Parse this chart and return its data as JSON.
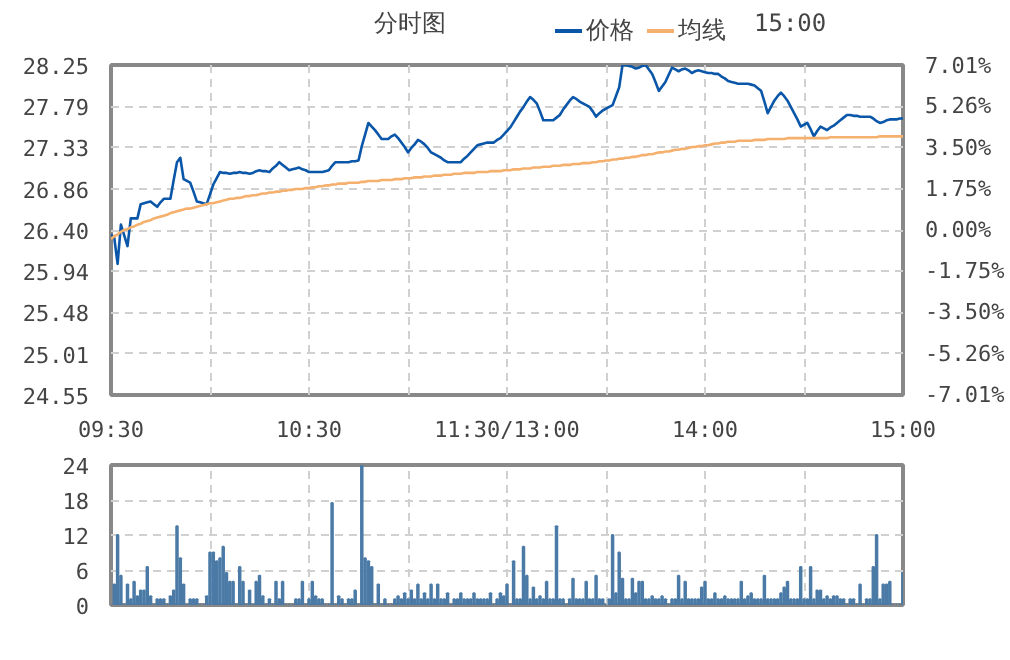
{
  "chart_data": [
    {
      "type": "line",
      "title": "分时图",
      "annotations": [
        "15:00"
      ],
      "legend": "top",
      "grid": true,
      "line_style": "solid",
      "categories": [
        "09:30",
        null,
        null,
        null,
        null,
        null,
        null,
        null,
        null,
        null,
        null,
        null,
        null,
        null,
        null,
        null,
        null,
        null,
        null,
        null,
        null,
        null,
        null,
        null,
        null,
        null,
        null,
        null,
        null,
        null,
        null,
        null,
        null,
        null,
        null,
        null,
        null,
        null,
        null,
        null,
        null,
        null,
        null,
        null,
        null,
        null,
        null,
        null,
        null,
        null,
        null,
        null,
        null,
        null,
        null,
        null,
        null,
        null,
        null,
        null,
        "10:30",
        null,
        null,
        null,
        null,
        null,
        null,
        null,
        null,
        null,
        null,
        null,
        null,
        null,
        null,
        null,
        null,
        null,
        null,
        null,
        null,
        null,
        null,
        null,
        null,
        null,
        null,
        null,
        null,
        null,
        null,
        null,
        null,
        null,
        null,
        null,
        null,
        null,
        null,
        null,
        null,
        null,
        null,
        null,
        null,
        null,
        null,
        null,
        null,
        null,
        null,
        null,
        null,
        null,
        null,
        null,
        null,
        null,
        null,
        null,
        "11:30/13:00",
        null,
        null,
        null,
        null,
        null,
        null,
        null,
        null,
        null,
        null,
        null,
        null,
        null,
        null,
        null,
        null,
        null,
        null,
        null,
        null,
        null,
        null,
        null,
        null,
        null,
        null,
        null,
        null,
        null,
        null,
        null,
        null,
        null,
        null,
        null,
        null,
        null,
        null,
        null,
        null,
        null,
        null,
        null,
        null,
        null,
        null,
        null,
        null,
        null,
        null,
        null,
        null,
        null,
        null,
        null,
        null,
        null,
        null,
        null,
        "14:00",
        null,
        null,
        null,
        null,
        null,
        null,
        null,
        null,
        null,
        null,
        null,
        null,
        null,
        null,
        null,
        null,
        null,
        null,
        null,
        null,
        null,
        null,
        null,
        null,
        null,
        null,
        null,
        null,
        null,
        null,
        null,
        null,
        null,
        null,
        null,
        null,
        null,
        null,
        null,
        null,
        null,
        null,
        null,
        null,
        null,
        null,
        null,
        null,
        null,
        null,
        null,
        null,
        null,
        null,
        null,
        null,
        null,
        null,
        null,
        "15:00"
      ],
      "ylim": [
        24.55,
        28.25
      ],
      "yticks": [
        24.55,
        25.01,
        25.48,
        25.94,
        {
          "value": 26.4,
          "label": "26.40"
        },
        26.86,
        27.33,
        27.79,
        28.25
      ],
      "y2lim": [
        -7.01,
        7.01
      ],
      "y2ticks": [
        {
          "value": -7.01,
          "label": "-7.01%"
        },
        {
          "value": -5.26,
          "label": "-5.26%"
        },
        {
          "value": -3.5,
          "label": "-3.50%"
        },
        {
          "value": -1.75,
          "label": "-1.75%"
        },
        {
          "value": 0,
          "label": "0.00%"
        },
        {
          "value": 1.75,
          "label": "1.75%"
        },
        {
          "value": 3.5,
          "label": "3.50%"
        },
        {
          "value": 5.26,
          "label": "5.26%"
        },
        {
          "value": 7.01,
          "label": "7.01%"
        }
      ],
      "series": [
        {
          "name": "价格",
          "color": "#0a56a8",
          "values": [
            26.35,
            26.31,
            26.02,
            26.46,
            26.34,
            26.22,
            26.53,
            26.53,
            26.53,
            26.69,
            26.7,
            26.71,
            26.72,
            26.69,
            26.66,
            26.71,
            26.75,
            26.75,
            26.75,
            26.96,
            27.16,
            27.21,
            26.97,
            26.95,
            26.93,
            26.83,
            26.72,
            26.71,
            26.7,
            26.69,
            26.8,
            26.91,
            26.98,
            27.05,
            27.04,
            27.04,
            27.03,
            27.04,
            27.04,
            27.05,
            27.04,
            27.04,
            27.03,
            27.04,
            27.06,
            27.07,
            27.06,
            27.06,
            27.05,
            27.09,
            27.12,
            27.16,
            27.13,
            27.1,
            27.07,
            27.08,
            27.09,
            27.1,
            27.08,
            27.07,
            27.05,
            27.05,
            27.05,
            27.05,
            27.05,
            27.06,
            27.07,
            27.12,
            27.16,
            27.16,
            27.16,
            27.16,
            27.16,
            27.17,
            27.17,
            27.18,
            27.34,
            27.47,
            27.6,
            27.56,
            27.52,
            27.47,
            27.42,
            27.42,
            27.42,
            27.45,
            27.47,
            27.43,
            27.38,
            27.33,
            27.27,
            27.32,
            27.36,
            27.41,
            27.39,
            27.36,
            27.32,
            27.27,
            27.25,
            27.23,
            27.21,
            27.18,
            27.16,
            27.16,
            27.16,
            27.16,
            27.16,
            27.2,
            27.23,
            27.27,
            27.31,
            27.35,
            27.36,
            27.37,
            27.38,
            27.38,
            27.38,
            27.41,
            27.43,
            27.47,
            27.51,
            27.55,
            27.61,
            27.67,
            27.73,
            27.78,
            27.84,
            27.89,
            27.86,
            27.82,
            27.73,
            27.63,
            27.63,
            27.63,
            27.63,
            27.66,
            27.69,
            27.75,
            27.8,
            27.85,
            27.89,
            27.87,
            27.84,
            27.82,
            27.8,
            27.78,
            27.73,
            27.67,
            27.71,
            27.74,
            27.76,
            27.78,
            27.8,
            27.9,
            28.0,
            28.25,
            28.25,
            28.24,
            28.23,
            28.21,
            28.22,
            28.24,
            28.25,
            28.2,
            28.15,
            28.06,
            27.96,
            28.01,
            28.06,
            28.14,
            28.22,
            28.2,
            28.18,
            28.2,
            28.21,
            28.19,
            28.16,
            28.18,
            28.19,
            28.18,
            28.17,
            28.16,
            28.16,
            28.15,
            28.15,
            28.12,
            28.1,
            28.07,
            28.06,
            28.05,
            28.04,
            28.04,
            28.04,
            28.04,
            28.03,
            28.02,
            27.99,
            27.96,
            27.84,
            27.71,
            27.78,
            27.85,
            27.9,
            27.94,
            27.9,
            27.85,
            27.78,
            27.71,
            27.64,
            27.56,
            27.58,
            27.6,
            27.53,
            27.45,
            27.51,
            27.56,
            27.54,
            27.52,
            27.55,
            27.57,
            27.6,
            27.63,
            27.66,
            27.69,
            27.69,
            27.68,
            27.68,
            27.67,
            27.67,
            27.67,
            27.67,
            27.65,
            27.62,
            27.6,
            27.61,
            27.63,
            27.64,
            27.64,
            27.64,
            27.65,
            27.65
          ]
        },
        {
          "name": "均线",
          "color": "#f5b06e",
          "values": [
            26.3,
            26.33,
            26.35,
            26.38,
            26.4,
            26.41,
            26.43,
            26.44,
            26.46,
            26.47,
            26.49,
            26.5,
            26.51,
            26.53,
            26.54,
            26.55,
            26.56,
            26.57,
            26.59,
            26.6,
            26.61,
            26.62,
            26.63,
            26.64,
            26.64,
            26.65,
            26.66,
            26.67,
            26.68,
            26.69,
            26.7,
            26.7,
            26.71,
            26.72,
            26.73,
            26.74,
            26.75,
            26.75,
            26.76,
            26.76,
            26.77,
            26.78,
            26.78,
            26.79,
            26.79,
            26.8,
            26.81,
            26.81,
            26.82,
            26.82,
            26.83,
            26.83,
            26.84,
            26.84,
            26.85,
            26.85,
            26.86,
            26.86,
            26.86,
            26.87,
            26.87,
            26.88,
            26.88,
            26.89,
            26.89,
            26.9,
            26.9,
            26.91,
            26.91,
            26.92,
            26.92,
            26.92,
            26.93,
            26.93,
            26.93,
            26.93,
            26.94,
            26.94,
            26.95,
            26.95,
            26.95,
            26.95,
            26.96,
            26.96,
            26.96,
            26.96,
            26.97,
            26.97,
            26.97,
            26.98,
            26.98,
            26.98,
            26.99,
            26.99,
            26.99,
            27.0,
            27.0,
            27.0,
            27.01,
            27.01,
            27.01,
            27.02,
            27.02,
            27.02,
            27.03,
            27.03,
            27.03,
            27.04,
            27.04,
            27.04,
            27.04,
            27.05,
            27.05,
            27.05,
            27.05,
            27.06,
            27.06,
            27.06,
            27.06,
            27.07,
            27.07,
            27.07,
            27.08,
            27.08,
            27.08,
            27.09,
            27.09,
            27.09,
            27.1,
            27.1,
            27.1,
            27.11,
            27.11,
            27.11,
            27.12,
            27.12,
            27.12,
            27.13,
            27.13,
            27.13,
            27.14,
            27.14,
            27.14,
            27.15,
            27.15,
            27.15,
            27.16,
            27.16,
            27.17,
            27.17,
            27.18,
            27.18,
            27.19,
            27.19,
            27.2,
            27.2,
            27.21,
            27.21,
            27.22,
            27.22,
            27.23,
            27.24,
            27.24,
            27.25,
            27.25,
            27.26,
            27.27,
            27.27,
            27.28,
            27.28,
            27.29,
            27.3,
            27.3,
            27.31,
            27.31,
            27.32,
            27.33,
            27.33,
            27.34,
            27.34,
            27.35,
            27.35,
            27.36,
            27.37,
            27.37,
            27.38,
            27.38,
            27.39,
            27.39,
            27.39,
            27.4,
            27.4,
            27.4,
            27.4,
            27.4,
            27.41,
            27.41,
            27.41,
            27.41,
            27.42,
            27.42,
            27.42,
            27.42,
            27.42,
            27.42,
            27.43,
            27.43,
            27.43,
            27.43,
            27.43,
            27.43,
            27.43,
            27.43,
            27.43,
            27.43,
            27.43,
            27.43,
            27.43,
            27.44,
            27.44,
            27.44,
            27.44,
            27.44,
            27.44,
            27.44,
            27.44,
            27.44,
            27.44,
            27.44,
            27.44,
            27.44,
            27.44,
            27.44,
            27.45,
            27.45,
            27.45,
            27.45,
            27.45,
            27.45,
            27.45,
            27.45
          ]
        }
      ]
    },
    {
      "type": "bar",
      "color": "#4a7aa5",
      "grid": true,
      "tick_labels": "y",
      "categories": [
        null,
        null,
        null,
        null,
        null,
        null,
        null,
        null,
        null,
        null,
        null,
        null,
        null,
        null,
        null,
        null,
        null,
        null,
        null,
        null,
        null,
        null,
        null,
        null,
        null,
        null,
        null,
        null,
        null,
        null,
        null,
        null,
        null,
        null,
        null,
        null,
        null,
        null,
        null,
        null,
        null,
        null,
        null,
        null,
        null,
        null,
        null,
        null,
        null,
        null,
        null,
        null,
        null,
        null,
        null,
        null,
        null,
        null,
        null,
        null,
        null,
        null,
        null,
        null,
        null,
        null,
        null,
        null,
        null,
        null,
        null,
        null,
        null,
        null,
        null,
        null,
        null,
        null,
        null,
        null,
        null,
        null,
        null,
        null,
        null,
        null,
        null,
        null,
        null,
        null,
        null,
        null,
        null,
        null,
        null,
        null,
        null,
        null,
        null,
        null,
        null,
        null,
        null,
        null,
        null,
        null,
        null,
        null,
        null,
        null,
        null,
        null,
        null,
        null,
        null,
        null,
        null,
        null,
        null,
        null,
        null,
        null,
        null,
        null,
        null,
        null,
        null,
        null,
        null,
        null,
        null,
        null,
        null,
        null,
        null,
        null,
        null,
        null,
        null,
        null,
        null,
        null,
        null,
        null,
        null,
        null,
        null,
        null,
        null,
        null,
        null,
        null,
        null,
        null,
        null,
        null,
        null,
        null,
        null,
        null,
        null,
        null,
        null,
        null,
        null,
        null,
        null,
        null,
        null,
        null,
        null,
        null,
        null,
        null,
        null,
        null,
        null,
        null,
        null,
        null,
        null,
        null,
        null,
        null,
        null,
        null,
        null,
        null,
        null,
        null,
        null,
        null,
        null,
        null,
        null,
        null,
        null,
        null,
        null,
        null,
        null,
        null,
        null,
        null,
        null,
        null,
        null,
        null,
        null,
        null,
        null,
        null,
        null,
        null,
        null,
        null,
        null,
        null,
        null,
        null,
        null,
        null,
        null,
        null,
        null,
        null,
        null,
        null,
        null,
        null,
        null,
        null,
        null,
        null,
        null,
        null,
        null,
        null,
        null,
        null,
        null
      ],
      "values": [
        0,
        3.5,
        12,
        5,
        0,
        3.5,
        1,
        4,
        1.5,
        2.5,
        2.5,
        6.5,
        1.5,
        0,
        1,
        1,
        1,
        0,
        1.5,
        2.5,
        13.5,
        8,
        3.5,
        0,
        1,
        1,
        1,
        0,
        0,
        1.5,
        9,
        9,
        7.5,
        8,
        10,
        5.5,
        4,
        4,
        0,
        6.5,
        4,
        0,
        2.5,
        0,
        4,
        5,
        1.5,
        0,
        1,
        0,
        4,
        1,
        4,
        0,
        0,
        0,
        1,
        1,
        4,
        0,
        1,
        4,
        1.5,
        1,
        1,
        0,
        0,
        17.5,
        0,
        1.5,
        1,
        0,
        1,
        1,
        2.5,
        0,
        24,
        8,
        7.5,
        6.5,
        0,
        3.5,
        0,
        1,
        0,
        0,
        1,
        1.5,
        1,
        2,
        1,
        2.5,
        1,
        3.5,
        1,
        2,
        1,
        3.5,
        1,
        3.5,
        1,
        1,
        2,
        0,
        1,
        1,
        2,
        1,
        1,
        1,
        2,
        1,
        1,
        1,
        1,
        2,
        0,
        1,
        2,
        1.5,
        3.5,
        0,
        7.5,
        1,
        1,
        10,
        5,
        1,
        3,
        1,
        1.5,
        1,
        4,
        1,
        1,
        13.5,
        1,
        1,
        0,
        1,
        4.5,
        1,
        1,
        1,
        4,
        1,
        1,
        5,
        1,
        1,
        0,
        1,
        12,
        2,
        9,
        4.5,
        1,
        1,
        4.5,
        2,
        4,
        4,
        1,
        1,
        1.5,
        1,
        1,
        1.5,
        1,
        0,
        1,
        1,
        5,
        1,
        4,
        1,
        1,
        1,
        1,
        3,
        4,
        1,
        1,
        2,
        1,
        1,
        1.5,
        1,
        1,
        1,
        1,
        4,
        1,
        1.5,
        2,
        1,
        1,
        1,
        5,
        1,
        1,
        1,
        1,
        2,
        3,
        4,
        1,
        1,
        1,
        6.5,
        1,
        1,
        6.5,
        1,
        2.5,
        2.5,
        1,
        1.5,
        1,
        1.5,
        1.5,
        1,
        1,
        0,
        1,
        1,
        0,
        3.5,
        0,
        1,
        1,
        6.5,
        12,
        1,
        3.5,
        3.5,
        4,
        0,
        0,
        0,
        5.5
      ],
      "ylim": [
        0,
        24
      ],
      "yticks": [
        0,
        6,
        12,
        18,
        24
      ]
    }
  ]
}
